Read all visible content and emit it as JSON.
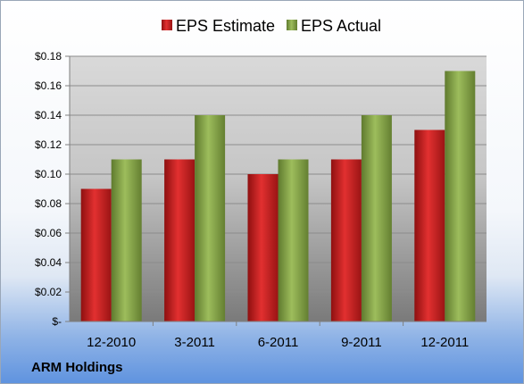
{
  "company": "ARM Holdings",
  "colors": {
    "estimate": "#cc1f1f",
    "actual": "#8aaa4e"
  },
  "chart_data": {
    "type": "bar",
    "title": "",
    "xlabel": "",
    "ylabel": "",
    "categories": [
      "12-2010",
      "3-2011",
      "6-2011",
      "9-2011",
      "12-2011"
    ],
    "series": [
      {
        "name": "EPS Estimate",
        "values": [
          0.09,
          0.11,
          0.1,
          0.11,
          0.13
        ]
      },
      {
        "name": "EPS Actual",
        "values": [
          0.11,
          0.14,
          0.11,
          0.14,
          0.17
        ]
      }
    ],
    "ylim": [
      0,
      0.18
    ],
    "yticks": [
      0,
      0.02,
      0.04,
      0.06,
      0.08,
      0.1,
      0.12,
      0.14,
      0.16,
      0.18
    ],
    "ytick_labels": [
      "$-",
      "$0.02",
      "$0.04",
      "$0.06",
      "$0.08",
      "$0.10",
      "$0.12",
      "$0.14",
      "$0.16",
      "$0.18"
    ],
    "grid": true,
    "legend": "top"
  }
}
